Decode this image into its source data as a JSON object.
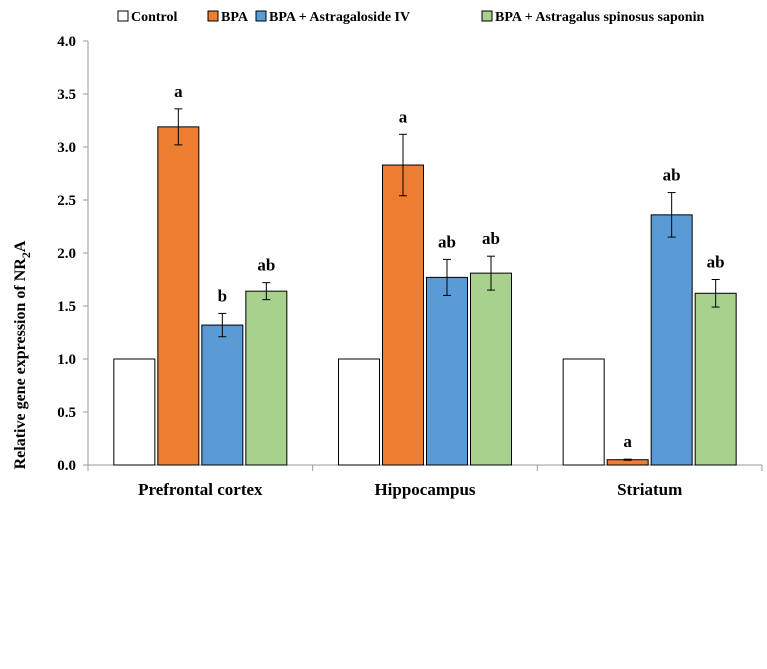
{
  "chart_data": {
    "type": "bar",
    "title": "",
    "xlabel": "",
    "ylabel": "Relative gene expression of NR",
    "ylabel_subscript": "2",
    "ylabel_suffix": "A",
    "ylim": [
      0,
      4.0
    ],
    "yticks": [
      "0.0",
      "0.5",
      "1.0",
      "1.5",
      "2.0",
      "2.5",
      "3.0",
      "3.5",
      "4.0"
    ],
    "grid": false,
    "legend_position": "top",
    "categories": [
      "Prefrontal cortex",
      "Hippocampus",
      "Striatum"
    ],
    "series": [
      {
        "name": "Control",
        "color": "#ffffff",
        "values": [
          1.0,
          1.0,
          1.0
        ],
        "errors": [
          0,
          0,
          0
        ],
        "labels": [
          "",
          "",
          ""
        ]
      },
      {
        "name": "BPA",
        "color": "#ed7d31",
        "values": [
          3.19,
          2.83,
          0.05
        ],
        "errors": [
          0.17,
          0.29,
          0.005
        ],
        "labels": [
          "a",
          "a",
          "a"
        ]
      },
      {
        "name": "BPA + Astragaloside IV",
        "color": "#5b9bd5",
        "values": [
          1.32,
          1.77,
          2.36
        ],
        "errors": [
          0.11,
          0.17,
          0.21
        ],
        "labels": [
          "b",
          "ab",
          "ab"
        ]
      },
      {
        "name": "BPA + Astragalus spinosus saponin",
        "color": "#a9d18e",
        "values": [
          1.64,
          1.81,
          1.62
        ],
        "errors": [
          0.08,
          0.16,
          0.13
        ],
        "labels": [
          "ab",
          "ab",
          "ab"
        ]
      }
    ]
  }
}
